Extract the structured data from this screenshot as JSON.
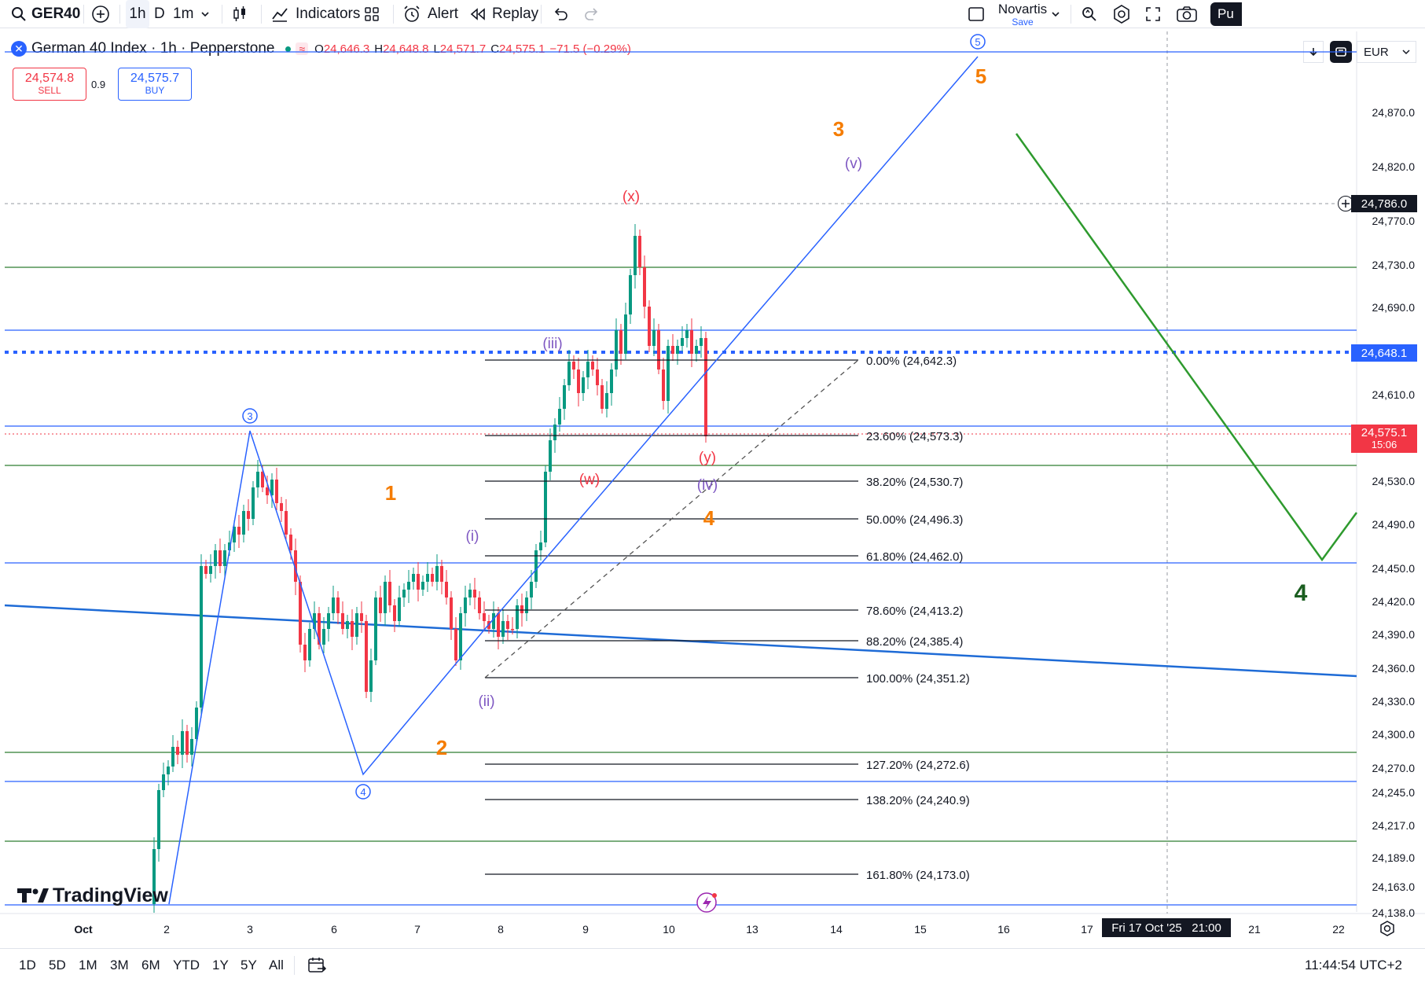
{
  "toolbar": {
    "symbol": "GER40",
    "intervals": [
      "1h",
      "D",
      "1m"
    ],
    "indicators_label": "Indicators",
    "alert_label": "Alert",
    "replay_label": "Replay",
    "layout_name": "Novartis",
    "layout_status": "Save",
    "publish_label": "Pu"
  },
  "legend": {
    "title": "German 40 Index · 1h · Pepperstone",
    "ohlc": {
      "o_label": "O",
      "o": "24,646.3",
      "h_label": "H",
      "h": "24,648.8",
      "l_label": "L",
      "l": "24,571.7",
      "c_label": "C",
      "c": "24,575.1",
      "change": "−71.5 (−0.29%)"
    },
    "sell_price": "24,574.8",
    "sell_label": "SELL",
    "spread": "0.9",
    "buy_price": "24,575.7",
    "buy_label": "BUY",
    "currency": "EUR"
  },
  "price_axis": {
    "ticks": [
      "24,870.0",
      "24,820.0",
      "24,770.0",
      "24,730.0",
      "24,690.0",
      "24,610.0",
      "24,530.0",
      "24,490.0",
      "24,450.0",
      "24,420.0",
      "24,390.0",
      "24,360.0",
      "24,330.0",
      "24,300.0",
      "24,270.0",
      "24,245.0",
      "24,217.0",
      "24,189.0",
      "24,163.0",
      "24,138.0"
    ],
    "crosshair_price": "24,786.0",
    "alert_price": "24,648.1",
    "last_price": "24,575.1",
    "countdown": "15:06"
  },
  "time_axis": {
    "ticks": [
      "Oct",
      "2",
      "3",
      "6",
      "7",
      "8",
      "9",
      "10",
      "13",
      "14",
      "15",
      "16",
      "17",
      "21",
      "22"
    ],
    "crosshair_label": "Fri 17 Oct '25   21:00"
  },
  "fibonacci": [
    "0.00% (24,642.3)",
    "23.60% (24,573.3)",
    "38.20% (24,530.7)",
    "50.00% (24,496.3)",
    "61.80% (24,462.0)",
    "78.60% (24,413.2)",
    "88.20% (24,385.4)",
    "100.00% (24,351.2)",
    "127.20% (24,272.6)",
    "138.20% (24,240.9)",
    "161.80% (24,173.0)"
  ],
  "wave_labels": {
    "orange": [
      "1",
      "2",
      "3",
      "4",
      "5"
    ],
    "purple": [
      "(i)",
      "(ii)",
      "(iii)",
      "(iv)",
      "(v)"
    ],
    "red": [
      "(w)",
      "(x)",
      "(y)"
    ],
    "circled_blue": [
      "3",
      "4",
      "5"
    ],
    "green": "4"
  },
  "bottom": {
    "ranges": [
      "1D",
      "5D",
      "1M",
      "3M",
      "6M",
      "YTD",
      "1Y",
      "5Y",
      "All"
    ],
    "clock": "11:44:54 UTC+2"
  },
  "watermark": "TradingView",
  "colors": {
    "bull": "#089981",
    "bear": "#f23645",
    "blue_line": "#2962ff",
    "green_line": "#2e7d32",
    "orange_label": "#f57c00",
    "purple_label": "#7e57c2"
  }
}
